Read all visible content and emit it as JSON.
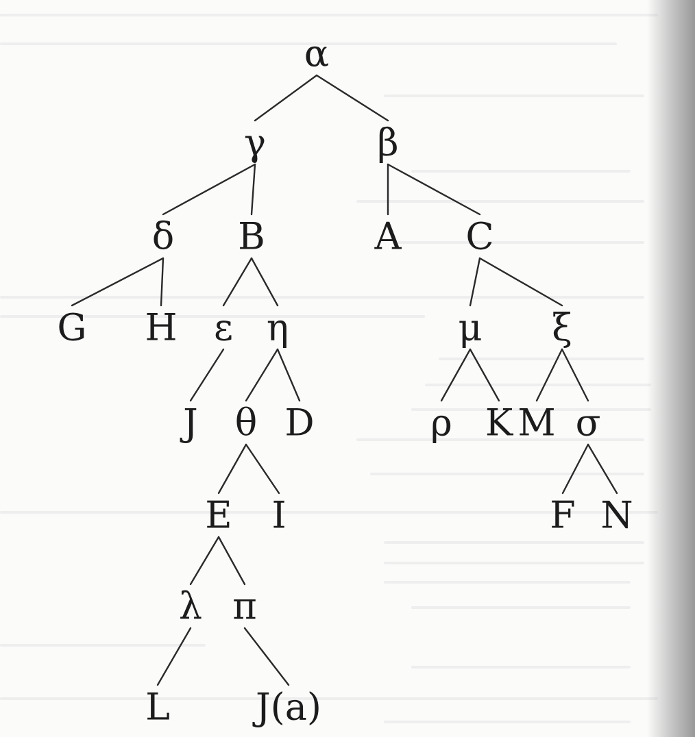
{
  "diagram": {
    "type": "tree",
    "root": "n_alpha",
    "nodes": [
      {
        "id": "n_alpha",
        "label": "α"
      },
      {
        "id": "n_gamma",
        "label": "γ"
      },
      {
        "id": "n_beta",
        "label": "β"
      },
      {
        "id": "n_delta",
        "label": "δ"
      },
      {
        "id": "n_B",
        "label": "B"
      },
      {
        "id": "n_A",
        "label": "A"
      },
      {
        "id": "n_C",
        "label": "C"
      },
      {
        "id": "n_G",
        "label": "G"
      },
      {
        "id": "n_H",
        "label": "H"
      },
      {
        "id": "n_epsilon",
        "label": "ε"
      },
      {
        "id": "n_eta",
        "label": "η"
      },
      {
        "id": "n_mu",
        "label": "μ"
      },
      {
        "id": "n_xi",
        "label": "ξ"
      },
      {
        "id": "n_J",
        "label": "J"
      },
      {
        "id": "n_theta",
        "label": "θ"
      },
      {
        "id": "n_D",
        "label": "D"
      },
      {
        "id": "n_rho",
        "label": "ρ"
      },
      {
        "id": "n_K",
        "label": "K"
      },
      {
        "id": "n_M",
        "label": "M"
      },
      {
        "id": "n_sigma",
        "label": "σ"
      },
      {
        "id": "n_E",
        "label": "E"
      },
      {
        "id": "n_I",
        "label": "I"
      },
      {
        "id": "n_F",
        "label": "F"
      },
      {
        "id": "n_N",
        "label": "N"
      },
      {
        "id": "n_lambda",
        "label": "λ"
      },
      {
        "id": "n_pi",
        "label": "π"
      },
      {
        "id": "n_L",
        "label": "L"
      },
      {
        "id": "n_Ja",
        "label": "J(a)"
      }
    ],
    "edges": [
      [
        "n_alpha",
        "n_gamma"
      ],
      [
        "n_alpha",
        "n_beta"
      ],
      [
        "n_gamma",
        "n_delta"
      ],
      [
        "n_gamma",
        "n_B"
      ],
      [
        "n_beta",
        "n_A"
      ],
      [
        "n_beta",
        "n_C"
      ],
      [
        "n_delta",
        "n_G"
      ],
      [
        "n_delta",
        "n_H"
      ],
      [
        "n_B",
        "n_epsilon"
      ],
      [
        "n_B",
        "n_eta"
      ],
      [
        "n_C",
        "n_mu"
      ],
      [
        "n_C",
        "n_xi"
      ],
      [
        "n_epsilon",
        "n_J"
      ],
      [
        "n_eta",
        "n_theta"
      ],
      [
        "n_eta",
        "n_D"
      ],
      [
        "n_mu",
        "n_rho"
      ],
      [
        "n_mu",
        "n_K"
      ],
      [
        "n_xi",
        "n_M"
      ],
      [
        "n_xi",
        "n_sigma"
      ],
      [
        "n_theta",
        "n_E"
      ],
      [
        "n_theta",
        "n_I"
      ],
      [
        "n_sigma",
        "n_F"
      ],
      [
        "n_sigma",
        "n_N"
      ],
      [
        "n_E",
        "n_lambda"
      ],
      [
        "n_E",
        "n_pi"
      ],
      [
        "n_lambda",
        "n_L"
      ],
      [
        "n_pi",
        "n_Ja"
      ]
    ]
  }
}
